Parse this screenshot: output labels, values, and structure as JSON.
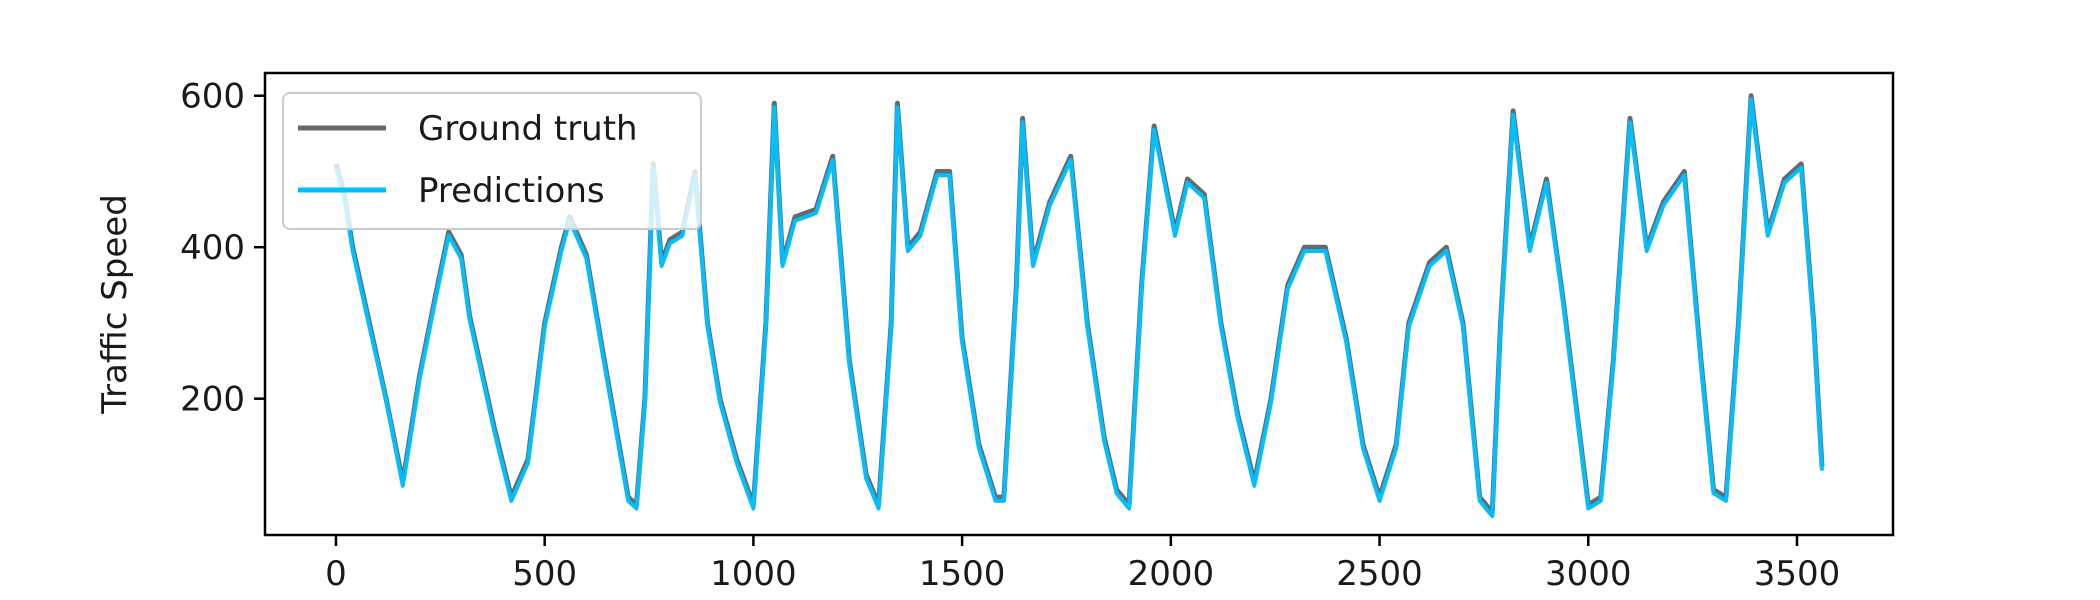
{
  "chart_data": {
    "type": "line",
    "title": "",
    "xlabel": "",
    "ylabel": "Traffic Speed",
    "xlim": [
      -170,
      3730
    ],
    "ylim": [
      20,
      630
    ],
    "xticks": [
      0,
      500,
      1000,
      1500,
      2000,
      2500,
      3000,
      3500
    ],
    "yticks": [
      200,
      400,
      600
    ],
    "legend_position": "top-left",
    "grid": false,
    "series": [
      {
        "name": "Ground truth",
        "color": "#696969",
        "x": [
          0,
          20,
          40,
          80,
          120,
          160,
          200,
          240,
          270,
          300,
          320,
          380,
          420,
          460,
          500,
          540,
          560,
          600,
          640,
          700,
          720,
          740,
          760,
          780,
          800,
          830,
          860,
          890,
          920,
          960,
          1000,
          1030,
          1050,
          1070,
          1100,
          1150,
          1190,
          1230,
          1270,
          1300,
          1330,
          1345,
          1370,
          1400,
          1440,
          1470,
          1500,
          1540,
          1580,
          1600,
          1630,
          1645,
          1670,
          1710,
          1760,
          1800,
          1840,
          1870,
          1900,
          1930,
          1960,
          2010,
          2040,
          2080,
          2120,
          2160,
          2200,
          2240,
          2280,
          2320,
          2370,
          2420,
          2460,
          2500,
          2540,
          2570,
          2620,
          2660,
          2700,
          2740,
          2770,
          2790,
          2820,
          2860,
          2900,
          2940,
          2980,
          3000,
          3030,
          3060,
          3100,
          3140,
          3180,
          3230,
          3270,
          3300,
          3330,
          3360,
          3390,
          3430,
          3470,
          3510,
          3540,
          3560
        ],
        "values": [
          510,
          470,
          400,
          300,
          200,
          90,
          230,
          340,
          420,
          390,
          310,
          160,
          70,
          120,
          300,
          400,
          440,
          390,
          260,
          70,
          60,
          200,
          510,
          380,
          410,
          420,
          500,
          300,
          200,
          120,
          60,
          300,
          590,
          380,
          440,
          450,
          520,
          250,
          100,
          60,
          300,
          590,
          400,
          420,
          500,
          500,
          280,
          140,
          70,
          70,
          350,
          570,
          380,
          460,
          520,
          300,
          150,
          80,
          60,
          350,
          560,
          420,
          490,
          470,
          300,
          180,
          90,
          200,
          350,
          400,
          400,
          280,
          140,
          70,
          140,
          300,
          380,
          400,
          300,
          70,
          50,
          300,
          580,
          400,
          490,
          330,
          150,
          60,
          70,
          250,
          570,
          400,
          460,
          500,
          250,
          80,
          70,
          300,
          600,
          420,
          490,
          510,
          300,
          110
        ]
      },
      {
        "name": "Predictions",
        "color": "#00bfff",
        "x": [
          0,
          20,
          40,
          80,
          120,
          160,
          200,
          240,
          270,
          300,
          320,
          380,
          420,
          460,
          500,
          540,
          560,
          600,
          640,
          700,
          720,
          740,
          760,
          780,
          800,
          830,
          860,
          890,
          920,
          960,
          1000,
          1030,
          1050,
          1070,
          1100,
          1150,
          1190,
          1230,
          1270,
          1300,
          1330,
          1345,
          1370,
          1400,
          1440,
          1470,
          1500,
          1540,
          1580,
          1600,
          1630,
          1645,
          1670,
          1710,
          1760,
          1800,
          1840,
          1870,
          1900,
          1930,
          1960,
          2010,
          2040,
          2080,
          2120,
          2160,
          2200,
          2240,
          2280,
          2320,
          2370,
          2420,
          2460,
          2500,
          2540,
          2570,
          2620,
          2660,
          2700,
          2740,
          2770,
          2790,
          2820,
          2860,
          2900,
          2940,
          2980,
          3000,
          3030,
          3060,
          3100,
          3140,
          3180,
          3230,
          3270,
          3300,
          3330,
          3360,
          3390,
          3430,
          3470,
          3510,
          3540,
          3560
        ],
        "values": [
          505,
          465,
          395,
          295,
          198,
          85,
          225,
          335,
          415,
          385,
          305,
          155,
          65,
          115,
          295,
          395,
          435,
          385,
          255,
          65,
          55,
          195,
          505,
          375,
          405,
          415,
          495,
          295,
          195,
          115,
          55,
          295,
          585,
          375,
          435,
          445,
          515,
          245,
          95,
          55,
          295,
          585,
          395,
          415,
          495,
          495,
          275,
          135,
          65,
          65,
          345,
          565,
          375,
          455,
          515,
          295,
          145,
          75,
          55,
          345,
          555,
          415,
          485,
          465,
          295,
          175,
          85,
          195,
          345,
          395,
          395,
          275,
          135,
          65,
          135,
          295,
          375,
          395,
          295,
          65,
          45,
          295,
          575,
          395,
          485,
          325,
          145,
          55,
          65,
          245,
          565,
          395,
          455,
          495,
          245,
          75,
          65,
          295,
          595,
          415,
          485,
          505,
          295,
          105
        ]
      }
    ]
  }
}
